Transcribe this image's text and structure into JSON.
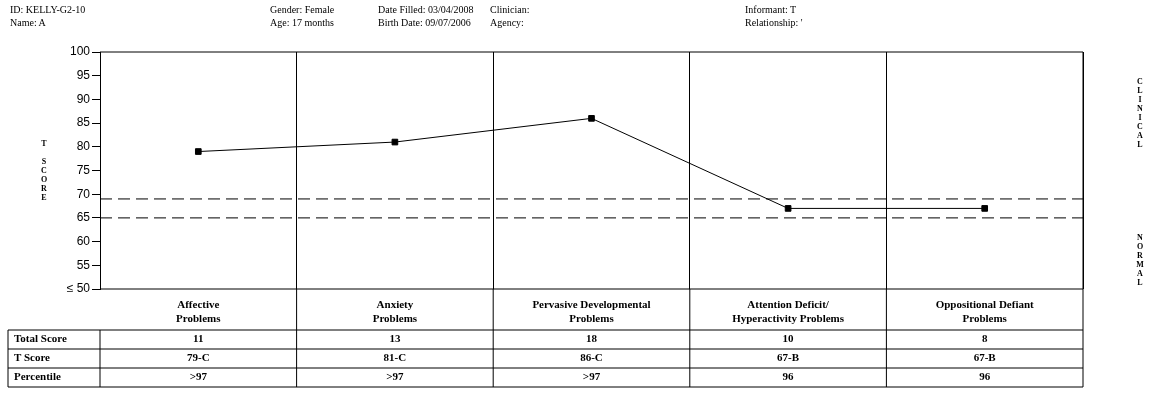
{
  "chart_data": {
    "type": "line",
    "ylabel": "T SCORE",
    "categories": [
      "Affective Problems",
      "Anxiety Problems",
      "Pervasive Developmental Problems",
      "Attention Deficit/ Hyperactivity Problems",
      "Oppositional Defiant Problems"
    ],
    "series": [
      {
        "color": "#000000",
        "values": [
          79,
          81,
          86,
          67,
          67
        ]
      }
    ],
    "ylim": [
      50,
      100
    ],
    "yticks": [
      {
        "value": 50,
        "label": "≤ 50"
      },
      55,
      60,
      65,
      70,
      75,
      80,
      85,
      90,
      95,
      100
    ],
    "grid": "x",
    "legend": false,
    "marker": "square",
    "line_style": "solid",
    "ref_lines": [
      {
        "axis": "y",
        "value": 69,
        "color": "#000000",
        "line_style": "dashed"
      },
      {
        "axis": "y",
        "value": 65,
        "color": "#000000",
        "line_style": "dashed"
      }
    ],
    "annotations": [
      "ID: KELLY-G2-10",
      "Gender: Female",
      "Date Filled: 03/04/2008",
      "Clinician:",
      "Informant: T",
      "Name: A",
      "Age: 17 months",
      "Birth Date: 09/07/2006",
      "Agency:",
      "Relationship: '",
      "CLINICAL",
      "NORMAL",
      "Total Score",
      "11",
      "13",
      "18",
      "10",
      "8",
      "T Score",
      "79-C",
      "81-C",
      "86-C",
      "67-B",
      "67-B",
      "Percentile",
      ">97",
      ">97",
      ">97",
      "96",
      "96"
    ]
  }
}
